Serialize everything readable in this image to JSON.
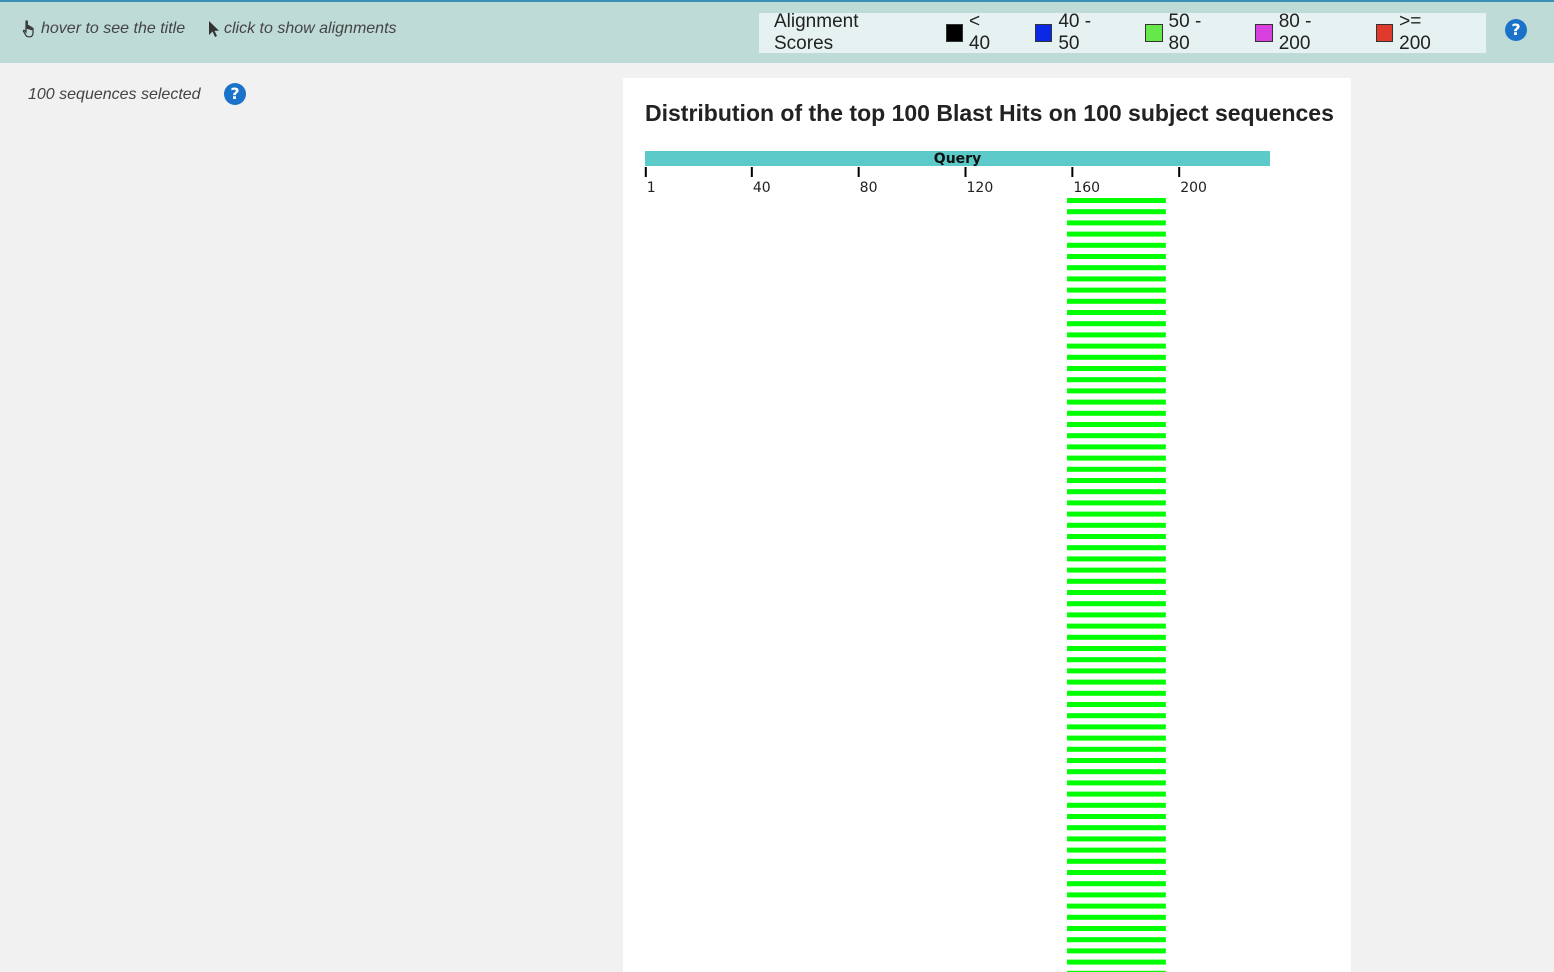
{
  "toolbar": {
    "hover_hint": "hover to see the title",
    "click_hint": "click to show alignments"
  },
  "legend": {
    "title": "Alignment Scores",
    "items": [
      {
        "label": "< 40",
        "color": "#000000"
      },
      {
        "label": "40 - 50",
        "color": "#0a28e6"
      },
      {
        "label": "50 - 80",
        "color": "#66e84a"
      },
      {
        "label": "80 - 200",
        "color": "#d940e0"
      },
      {
        "label": ">= 200",
        "color": "#e03a2c"
      }
    ]
  },
  "help_glyph": "?",
  "sidebar": {
    "selection_text": "100 sequences selected"
  },
  "panel": {
    "title": "Distribution of the top 100 Blast Hits on 100 subject sequences"
  },
  "chart_data": {
    "type": "bar",
    "query_label": "Query",
    "query_length": 234,
    "query_color": "#5ccac8",
    "axis_ticks": [
      1,
      40,
      80,
      120,
      160,
      200
    ],
    "hit_color": "#00ff00",
    "hits_shown": 70,
    "hit_range": [
      158,
      195
    ],
    "score_category": "50 - 80"
  }
}
